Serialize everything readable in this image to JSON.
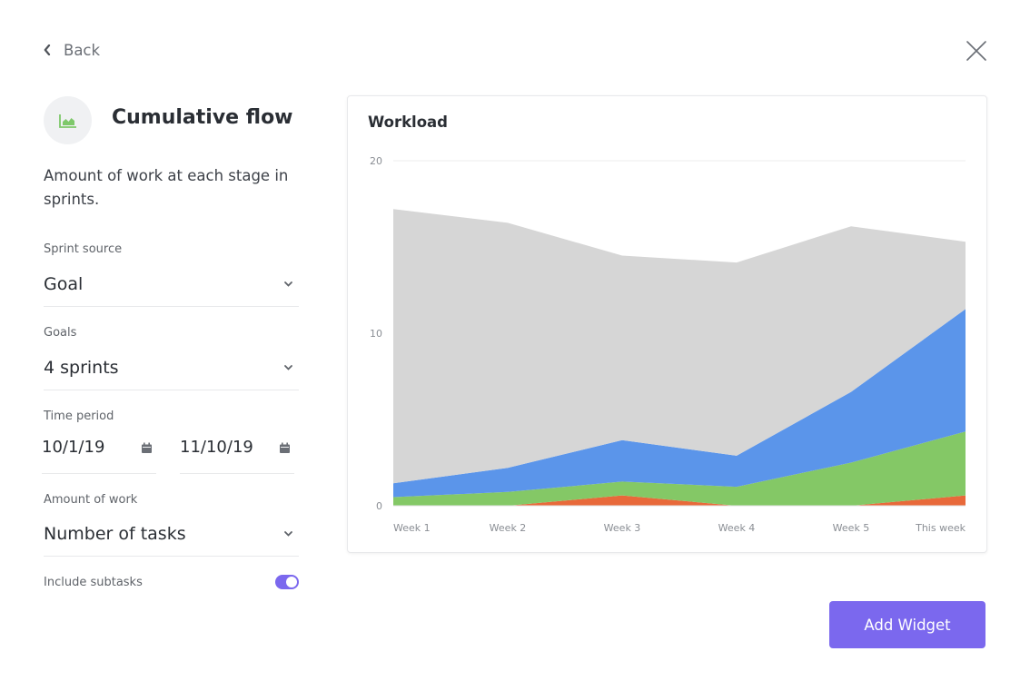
{
  "header": {
    "back_label": "Back"
  },
  "widget": {
    "title": "Cumulative flow",
    "description": "Amount of work at each stage in sprints.",
    "icon": "area-chart-icon",
    "icon_color": "#7ec86a"
  },
  "form": {
    "sprint_source": {
      "label": "Sprint source",
      "value": "Goal"
    },
    "goals": {
      "label": "Goals",
      "value": "4 sprints"
    },
    "time_period": {
      "label": "Time period",
      "start": "10/1/19",
      "end": "11/10/19"
    },
    "amount_of_work": {
      "label": "Amount of work",
      "value": "Number of tasks"
    },
    "include_subtasks": {
      "label": "Include subtasks",
      "enabled": true
    }
  },
  "footer": {
    "add_widget_label": "Add Widget"
  },
  "colors": {
    "accent": "#7b68ee"
  },
  "chart_data": {
    "type": "area",
    "title": "Workload",
    "stacked": true,
    "categories": [
      "Week 1",
      "Week 2",
      "Week 3",
      "Week 4",
      "Week 5",
      "This week"
    ],
    "yticks": [
      "0",
      "10",
      "20"
    ],
    "ylim": [
      0,
      20
    ],
    "grid": true,
    "series": [
      {
        "color": "#e8693a",
        "values": [
          0,
          0,
          0.6,
          0,
          0,
          0.6
        ]
      },
      {
        "color": "#84c866",
        "values": [
          0.5,
          0.8,
          0.8,
          1.1,
          2.5,
          3.7
        ]
      },
      {
        "color": "#5b95ea",
        "values": [
          0.8,
          1.4,
          2.4,
          1.8,
          4.1,
          7.1
        ]
      },
      {
        "color": "#d6d6d6",
        "values": [
          15.9,
          14.2,
          10.7,
          11.2,
          9.6,
          3.9
        ]
      }
    ]
  }
}
